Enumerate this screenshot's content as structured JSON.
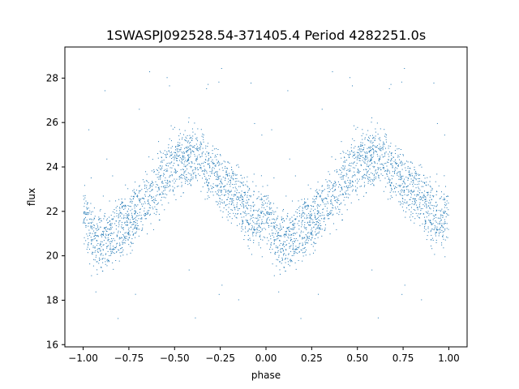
{
  "chart_data": {
    "type": "scatter",
    "title": "1SWASPJ092528.54-371405.4 Period 4282251.0s",
    "xlabel": "phase",
    "ylabel": "flux",
    "xlim": [
      -1.1,
      1.1
    ],
    "ylim": [
      15.9,
      29.4
    ],
    "xticks": [
      -1.0,
      -0.75,
      -0.5,
      -0.25,
      0.0,
      0.25,
      0.5,
      0.75,
      1.0
    ],
    "xtick_labels": [
      "−1.00",
      "−0.75",
      "−0.50",
      "−0.25",
      "0.00",
      "0.25",
      "0.50",
      "0.75",
      "1.00"
    ],
    "yticks": [
      16,
      18,
      20,
      22,
      24,
      26,
      28
    ],
    "ytick_labels": [
      "16",
      "18",
      "20",
      "22",
      "24",
      "26",
      "28"
    ],
    "grid": false,
    "marker_color": "#1f77b4",
    "series": [
      {
        "trend_phase": [
          0.0,
          0.05,
          0.1,
          0.15,
          0.2,
          0.25,
          0.3,
          0.35,
          0.4,
          0.45,
          0.5,
          0.55,
          0.6,
          0.65,
          0.7,
          0.75,
          0.8,
          0.85,
          0.9,
          0.95,
          1.0
        ],
        "trend_flux": [
          21.8,
          21.0,
          20.6,
          20.8,
          21.2,
          21.6,
          22.0,
          22.6,
          23.1,
          23.6,
          24.0,
          24.3,
          24.5,
          24.3,
          23.8,
          23.3,
          22.9,
          22.5,
          22.0,
          21.6,
          21.8
        ],
        "scatter": 0.9,
        "n_points_per_cycle": 1800
      }
    ]
  }
}
